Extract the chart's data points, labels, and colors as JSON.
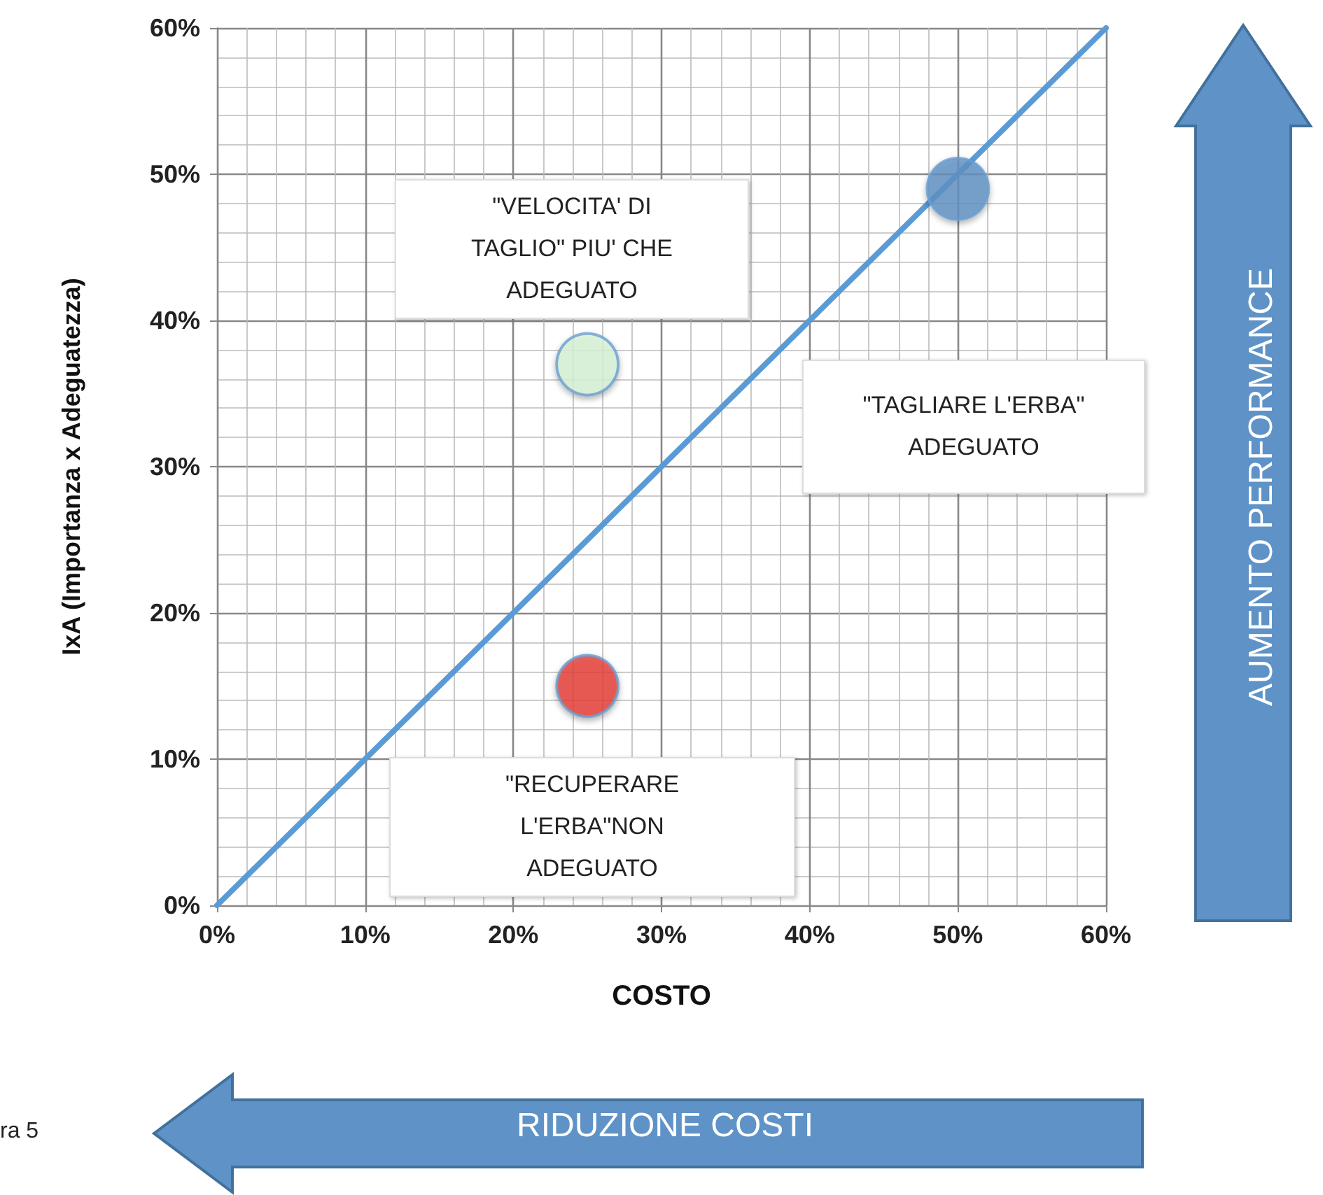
{
  "chart_data": {
    "type": "scatter",
    "xlabel": "COSTO",
    "ylabel": "IxA (Importanza x Adeguatezza)",
    "xlim": [
      0,
      60
    ],
    "ylim": [
      0,
      60
    ],
    "xticks": [
      {
        "value": 0,
        "label": "0%"
      },
      {
        "value": 10,
        "label": "10%"
      },
      {
        "value": 20,
        "label": "20%"
      },
      {
        "value": 30,
        "label": "30%"
      },
      {
        "value": 40,
        "label": "40%"
      },
      {
        "value": 50,
        "label": "50%"
      },
      {
        "value": 60,
        "label": "60%"
      }
    ],
    "yticks": [
      {
        "value": 0,
        "label": "0%"
      },
      {
        "value": 10,
        "label": "10%"
      },
      {
        "value": 20,
        "label": "20%"
      },
      {
        "value": 30,
        "label": "30%"
      },
      {
        "value": 40,
        "label": "40%"
      },
      {
        "value": 50,
        "label": "50%"
      },
      {
        "value": 60,
        "label": "60%"
      }
    ],
    "grid": true,
    "marker": "circle",
    "series": [
      {
        "type": "line",
        "color": "#5b9bd5",
        "x": [
          0,
          60
        ],
        "values": [
          0,
          60
        ],
        "marker": "none"
      },
      {
        "x": [
          50,
          25,
          25
        ],
        "values": [
          49,
          37,
          15
        ],
        "colors": [
          "#6092c6",
          "#d8f5d8",
          "#e8403a"
        ]
      }
    ],
    "annotations": [
      "\"VELOCITA' DI TAGLIO\" PIU' CHE ADEGUATO",
      "\"TAGLIARE L'ERBA\" ADEGUATO",
      "\"RECUPERARE L'ERBA\"NON ADEGUATO",
      "AUMENTO PERFORMANCE",
      "RIDUZIONE COSTI",
      "ra 5"
    ]
  }
}
